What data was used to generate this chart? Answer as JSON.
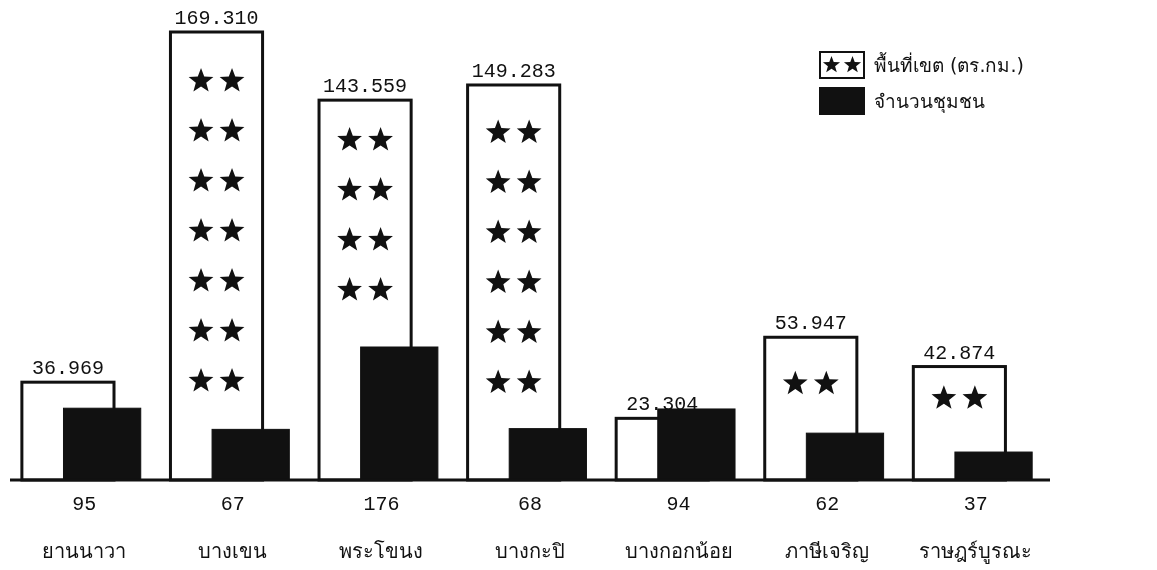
{
  "chart_data": {
    "type": "bar",
    "categories": [
      "ยานนาวา",
      "บางเขน",
      "พระโขนง",
      "บางกะปิ",
      "บางกอกน้อย",
      "ภาษีเจริญ",
      "ราษฎร์บูรณะ"
    ],
    "series": [
      {
        "name": "พื้นที่เขต (ตร.กม.)",
        "color": "#ffffff",
        "values": [
          36.969,
          169.31,
          143.559,
          149.283,
          23.304,
          53.947,
          42.874
        ],
        "value_labels": [
          "36.969",
          "169.310",
          "143.559",
          "149.283",
          "23.304",
          "53.947",
          "42.874"
        ]
      },
      {
        "name": "จำนวนชุมชน",
        "color": "#111111",
        "axis": "y2",
        "values": [
          95,
          67,
          176,
          68,
          94,
          62,
          37
        ],
        "value_labels": [
          "95",
          "67",
          "176",
          "68",
          "94",
          "62",
          "37"
        ]
      }
    ],
    "tick_labels": "x",
    "legend": "top right"
  }
}
